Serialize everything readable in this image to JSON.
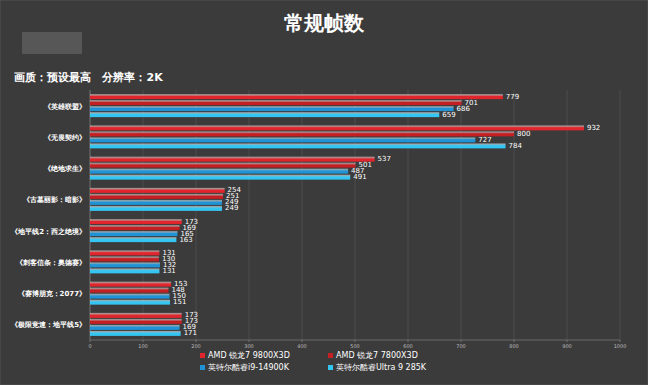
{
  "chart_data": {
    "type": "bar",
    "title": "常规帧数",
    "subtitle": "画质：预设最高   分辨率：2K",
    "orientation": "horizontal",
    "data_labels": true,
    "grid": true,
    "legend": "bottom",
    "categories": [
      "《英雄联盟》",
      "《无畏契约》",
      "《绝地求生》",
      "《古墓丽影：暗影》",
      "《地平线2：西之绝境》",
      "《刺客信条：奥德赛》",
      "《赛博朋克：2077》",
      "《极限竞速：地平线5》"
    ],
    "series": [
      {
        "name": "AMD 锐龙7 9800X3D",
        "color": "#e0262c",
        "values": [
          779,
          932,
          537,
          254,
          173,
          131,
          153,
          173
        ]
      },
      {
        "name": "AMD 锐龙7 7800X3D",
        "color": "#c41f23",
        "values": [
          701,
          800,
          501,
          251,
          169,
          130,
          148,
          173
        ]
      },
      {
        "name": "英特尔酷睿i9-14900K",
        "color": "#1f93d6",
        "values": [
          686,
          727,
          487,
          249,
          165,
          132,
          150,
          169
        ]
      },
      {
        "name": "英特尔酷睿Ultra 9 285K",
        "color": "#33c6f2",
        "values": [
          659,
          784,
          491,
          249,
          163,
          131,
          151,
          171
        ]
      }
    ],
    "xlim": [
      0,
      1000
    ],
    "xticks": [
      0,
      100,
      200,
      300,
      400,
      500,
      600,
      700,
      800,
      900,
      1000
    ]
  }
}
